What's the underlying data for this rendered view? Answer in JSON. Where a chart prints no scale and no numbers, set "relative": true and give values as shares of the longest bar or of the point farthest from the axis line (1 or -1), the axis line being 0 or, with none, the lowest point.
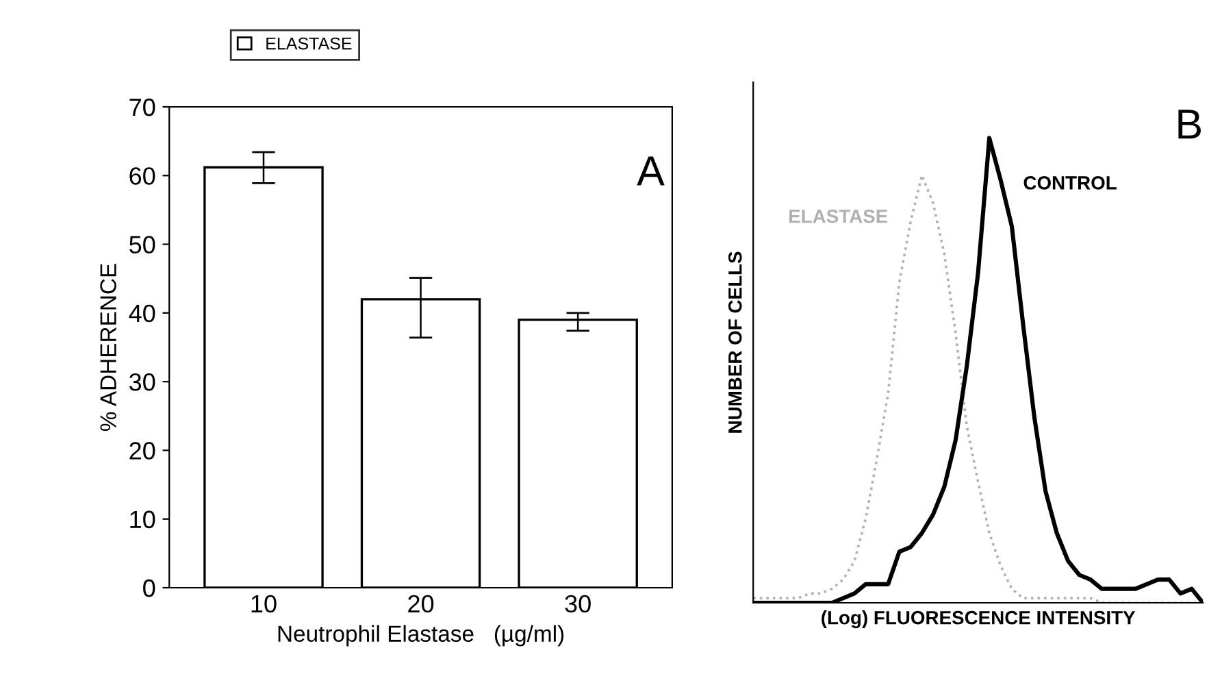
{
  "chart_data": [
    {
      "type": "bar",
      "xlabel": "Neutrophil Elastase   (µg/ml)",
      "ylabel": "% ADHERENCE",
      "categories": [
        "10",
        "20",
        "30"
      ],
      "series": [
        {
          "name": "ELASTASE",
          "color": "#ffffff",
          "values": [
            61.2,
            42.0,
            39.0
          ],
          "errors": [
            [
              58.9,
              63.4
            ],
            [
              36.4,
              45.1
            ],
            [
              37.4,
              40.0
            ]
          ]
        }
      ],
      "ylim": [
        0,
        70
      ],
      "yticks": [
        0,
        10,
        20,
        30,
        40,
        50,
        60,
        70
      ],
      "legend": "top",
      "grid": false,
      "annotations": [
        "A"
      ]
    },
    {
      "type": "line",
      "relative": true,
      "xlabel": "(Log) FLUORESCENCE INTENSITY",
      "ylabel": "NUMBER OF CELLS",
      "categories": [
        null,
        null,
        null,
        null,
        null,
        null,
        null,
        null,
        null,
        null,
        null,
        null,
        null,
        null,
        null,
        null,
        null,
        null,
        null,
        null,
        null,
        null,
        null,
        null,
        null,
        null,
        null,
        null,
        null,
        null,
        null,
        null,
        null,
        null,
        null,
        null,
        null,
        null,
        null,
        null,
        null
      ],
      "series": [
        {
          "name": "ELASTASE",
          "color": "#b0b0b0",
          "line_style": "dotted",
          "values": [
            0.01,
            0.01,
            0.01,
            0.01,
            0.01,
            0.02,
            0.02,
            0.03,
            0.05,
            0.09,
            0.18,
            0.31,
            0.45,
            0.69,
            0.82,
            0.92,
            0.86,
            0.75,
            0.58,
            0.38,
            0.26,
            0.15,
            0.08,
            0.03,
            0.01,
            0.01,
            0.01,
            0.01,
            0.01,
            0.01,
            0.01,
            0,
            0,
            0,
            0,
            0,
            0,
            0,
            0,
            0,
            0
          ]
        },
        {
          "name": "CONTROL",
          "color": "#000000",
          "line_style": "solid",
          "values": [
            0,
            0,
            0,
            0,
            0,
            0,
            0,
            0,
            0.01,
            0.02,
            0.04,
            0.04,
            0.04,
            0.11,
            0.12,
            0.15,
            0.19,
            0.25,
            0.35,
            0.51,
            0.71,
            1,
            0.91,
            0.81,
            0.6,
            0.4,
            0.24,
            0.15,
            0.09,
            0.06,
            0.05,
            0.03,
            0.03,
            0.03,
            0.03,
            0.04,
            0.05,
            0.05,
            0.02,
            0.03,
            0
          ]
        }
      ],
      "annotations": [
        "B"
      ]
    }
  ]
}
